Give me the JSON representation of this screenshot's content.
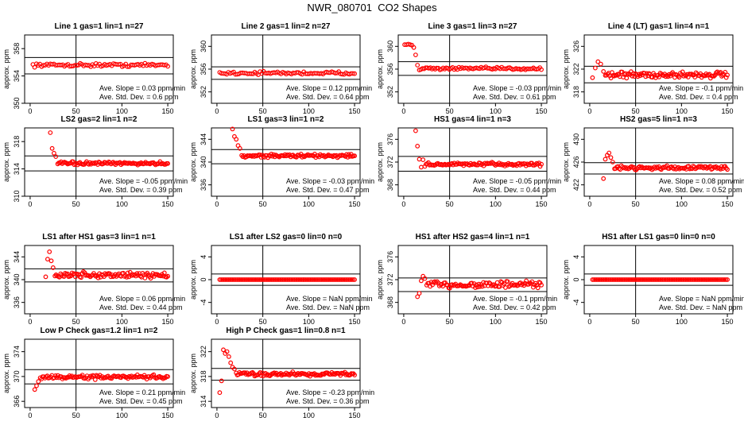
{
  "page_title": "NWR_080701  CO2 Shapes",
  "ylabel": "approx. ppm",
  "xticks": [
    0,
    50,
    100,
    150
  ],
  "slope_label": "Ave. Slope =",
  "slope_unit": "ppm/min",
  "std_label": "Ave. Std. Dev. =",
  "std_unit": "ppm",
  "chart_data": [
    {
      "type": "scatter",
      "title": "Line 1 gas=1 lin=1 n=27",
      "ylim": [
        350,
        360
      ],
      "yticks": [
        350,
        354,
        358
      ],
      "hlines": [
        356.7,
        354.3
      ],
      "vline": 50,
      "slope": "0.03",
      "std": "0.6",
      "series": [
        {
          "x_start": 3,
          "x_end": 150,
          "count": 78,
          "base": 355.6,
          "noise": 0.22,
          "head": []
        }
      ]
    },
    {
      "type": "scatter",
      "title": "Line 2 gas=1 lin=2 n=27",
      "ylim": [
        350,
        362
      ],
      "yticks": [
        352,
        356,
        360
      ],
      "hlines": [
        356.4,
        354.2
      ],
      "vline": 50,
      "slope": "0.12",
      "std": "0.64",
      "series": [
        {
          "x_start": 3,
          "x_end": 150,
          "count": 78,
          "base": 355.3,
          "noise": 0.25,
          "head": []
        }
      ]
    },
    {
      "type": "scatter",
      "title": "Line 3 gas=1 lin=3 n=27",
      "ylim": [
        350,
        362
      ],
      "yticks": [
        352,
        356,
        360
      ],
      "hlines": [
        357.3,
        354.9
      ],
      "vline": 50,
      "slope": "-0.03",
      "std": "0.61",
      "series": [
        {
          "x_start": 3,
          "x_end": 150,
          "count": 78,
          "base": 356.1,
          "noise": 0.22,
          "head": [
            [
              1,
              360.3
            ],
            [
              3,
              360.3
            ],
            [
              5,
              360.4
            ],
            [
              7,
              360.3
            ],
            [
              9,
              360.2
            ],
            [
              11,
              359.8
            ],
            [
              13,
              358.5
            ],
            [
              15,
              356.7
            ]
          ]
        }
      ]
    },
    {
      "type": "scatter",
      "title": "Line 4 (LT) gas=1 lin=4 n=1",
      "ylim": [
        316,
        328
      ],
      "yticks": [
        318,
        322,
        326
      ],
      "hlines": [
        322.5,
        319.6
      ],
      "vline": 50,
      "slope": "-0.1",
      "std": "0.4",
      "series": [
        {
          "x_start": 3,
          "x_end": 150,
          "count": 110,
          "base": 321,
          "noise": 0.55,
          "head": [
            [
              3,
              320.5
            ],
            [
              6,
              322.2
            ],
            [
              9,
              323.3
            ],
            [
              12,
              322.9
            ],
            [
              15,
              321.6
            ]
          ]
        }
      ]
    },
    {
      "type": "scatter",
      "title": "LS2 gas=2 lin=1 n=2",
      "ylim": [
        310,
        320
      ],
      "yticks": [
        310,
        314,
        318
      ],
      "hlines": [
        315.9,
        313.7
      ],
      "vline": 50,
      "slope": "-0.05",
      "std": "0.39",
      "series": [
        {
          "x_start": 3,
          "x_end": 150,
          "count": 100,
          "base": 314.8,
          "noise": 0.2,
          "head": [
            [
              22,
              319.3
            ],
            [
              24,
              317
            ],
            [
              26,
              316.3
            ],
            [
              28,
              315.8
            ]
          ]
        }
      ]
    },
    {
      "type": "scatter",
      "title": "LS1 gas=3 lin=1 n=2",
      "ylim": [
        334,
        346
      ],
      "yticks": [
        336,
        340,
        344
      ],
      "hlines": [
        342.2,
        339.7
      ],
      "vline": 50,
      "slope": "-0.03",
      "std": "0.47",
      "series": [
        {
          "x_start": 3,
          "x_end": 150,
          "count": 100,
          "base": 341.1,
          "noise": 0.28,
          "head": [
            [
              17,
              345.8
            ],
            [
              19,
              344.5
            ],
            [
              21,
              344
            ],
            [
              23,
              342.9
            ],
            [
              25,
              342.4
            ]
          ]
        }
      ]
    },
    {
      "type": "scatter",
      "title": "HS1 gas=4 lin=1 n=3",
      "ylim": [
        366,
        378
      ],
      "yticks": [
        368,
        372,
        376
      ],
      "hlines": [
        373,
        370.4
      ],
      "vline": 50,
      "slope": "-0.05",
      "std": "0.44",
      "series": [
        {
          "x_start": 3,
          "x_end": 150,
          "count": 100,
          "base": 371.6,
          "noise": 0.28,
          "head": [
            [
              13,
              377.5
            ],
            [
              15,
              374.8
            ],
            [
              17,
              372.5
            ],
            [
              19,
              371.1
            ],
            [
              21,
              372.4
            ]
          ]
        }
      ]
    },
    {
      "type": "scatter",
      "title": "HS2 gas=5 lin=1 n=3",
      "ylim": [
        420,
        432
      ],
      "yticks": [
        422,
        426,
        430
      ],
      "hlines": [
        425.9,
        423.9
      ],
      "vline": 50,
      "slope": "0.08",
      "std": "0.52",
      "series": [
        {
          "x_start": 3,
          "x_end": 150,
          "count": 100,
          "base": 425,
          "noise": 0.3,
          "head": [
            [
              15,
              423.1
            ],
            [
              17,
              426.5
            ],
            [
              19,
              427.2
            ],
            [
              21,
              427.6
            ],
            [
              23,
              426.8
            ],
            [
              25,
              426
            ]
          ]
        }
      ]
    },
    {
      "type": "scatter",
      "title": "LS1 after HS1 gas=3 lin=1 n=1",
      "ylim": [
        334,
        346
      ],
      "yticks": [
        336,
        340,
        344
      ],
      "hlines": [
        341.9,
        339.6
      ],
      "vline": 50,
      "slope": "0.06",
      "std": "0.44",
      "series": [
        {
          "x_start": 3,
          "x_end": 150,
          "count": 100,
          "base": 340.8,
          "noise": 0.5,
          "head": [
            [
              17,
              340.5
            ],
            [
              19,
              343.6
            ],
            [
              21,
              344.9
            ],
            [
              23,
              343.3
            ],
            [
              25,
              342.1
            ]
          ]
        }
      ]
    },
    {
      "type": "scatter",
      "title": "LS1 after LS2 gas=0 lin=0 n=0",
      "ylim": [
        -6,
        6
      ],
      "yticks": [
        -4,
        0,
        4
      ],
      "hlines": [
        1,
        -1
      ],
      "vline": 50,
      "slope": "NaN",
      "std": "NaN",
      "series": [
        {
          "x_start": 3,
          "x_end": 150,
          "count": 95,
          "base": 0,
          "noise": 0,
          "head": []
        }
      ]
    },
    {
      "type": "scatter",
      "title": "HS1 after HS2 gas=4 lin=1 n=1",
      "ylim": [
        366,
        378
      ],
      "yticks": [
        368,
        372,
        376
      ],
      "hlines": [
        372.3,
        369.9
      ],
      "vline": 50,
      "slope": "-0.1",
      "std": "0.42",
      "series": [
        {
          "x_start": 3,
          "x_end": 150,
          "count": 100,
          "base": 371.1,
          "noise": 0.55,
          "head": [
            [
              15,
              369
            ],
            [
              17,
              369.6
            ],
            [
              19,
              371.8
            ],
            [
              21,
              372.6
            ],
            [
              23,
              372.2
            ]
          ]
        }
      ]
    },
    {
      "type": "scatter",
      "title": "HS1 after LS1 gas=0 lin=0 n=0",
      "ylim": [
        -6,
        6
      ],
      "yticks": [
        -4,
        0,
        4
      ],
      "hlines": [
        1,
        -1
      ],
      "vline": 50,
      "slope": "NaN",
      "std": "NaN",
      "series": [
        {
          "x_start": 3,
          "x_end": 150,
          "count": 95,
          "base": 0,
          "noise": 0,
          "head": []
        }
      ]
    },
    {
      "type": "scatter",
      "title": "Low P Check gas=1.2 lin=1 n=2",
      "ylim": [
        365,
        376
      ],
      "yticks": [
        366,
        370,
        374
      ],
      "hlines": [
        371.1,
        368.8
      ],
      "vline": 50,
      "slope": "0.21",
      "std": "0.45",
      "series": [
        {
          "x_start": 3,
          "x_end": 150,
          "count": 110,
          "base": 369.9,
          "noise": 0.3,
          "head": [
            [
              5,
              367.9
            ],
            [
              7,
              368.5
            ],
            [
              9,
              369.2
            ]
          ]
        }
      ]
    },
    {
      "type": "scatter",
      "title": "High P Check gas=1 lin=0.8 n=1",
      "ylim": [
        313,
        324
      ],
      "yticks": [
        314,
        318,
        322
      ],
      "hlines": [
        319.3,
        317.4
      ],
      "vline": 50,
      "slope": "-0.23",
      "std": "0.36",
      "series": [
        {
          "x_start": 3,
          "x_end": 150,
          "count": 110,
          "base": 318.4,
          "noise": 0.3,
          "head": [
            [
              3,
              315.4
            ],
            [
              5,
              317.3
            ],
            [
              7,
              322.3
            ],
            [
              9,
              321.7
            ],
            [
              11,
              322
            ],
            [
              13,
              321.2
            ],
            [
              15,
              320.2
            ],
            [
              17,
              319.5
            ],
            [
              19,
              319.2
            ]
          ]
        }
      ]
    }
  ]
}
